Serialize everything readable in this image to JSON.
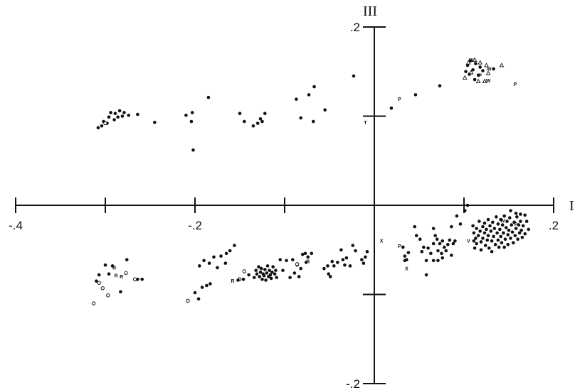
{
  "chart_data": {
    "type": "scatter",
    "title": "",
    "xlabel": "I",
    "ylabel": "III",
    "xlim": [
      -0.4,
      0.2
    ],
    "ylim": [
      -0.2,
      0.2
    ],
    "grid": false,
    "x_ticks": [
      -0.4,
      -0.3,
      -0.2,
      -0.1,
      0.1,
      0.2
    ],
    "x_tick_labels": [
      {
        "value": -0.4,
        "label": "-.4"
      },
      {
        "value": -0.2,
        "label": "-.2"
      },
      {
        "value": 0.2,
        "label": ".2"
      }
    ],
    "y_ticks": [
      -0.2,
      -0.1,
      0.1,
      0.2
    ],
    "y_tick_labels": [
      {
        "value": 0.2,
        "label": ".2"
      },
      {
        "value": -0.2,
        "label": "-.2"
      }
    ],
    "series": [
      {
        "marker": "filled-circle",
        "points": [
          [
            -0.308,
            0.087
          ],
          [
            -0.304,
            0.089
          ],
          [
            -0.302,
            0.094
          ],
          [
            -0.298,
            0.092
          ],
          [
            -0.296,
            0.099
          ],
          [
            -0.294,
            0.104
          ],
          [
            -0.29,
            0.096
          ],
          [
            -0.289,
            0.103
          ],
          [
            -0.286,
            0.099
          ],
          [
            -0.284,
            0.106
          ],
          [
            -0.281,
            0.1
          ],
          [
            -0.279,
            0.104
          ],
          [
            -0.274,
            0.101
          ],
          [
            -0.264,
            0.102
          ],
          [
            -0.245,
            0.093
          ],
          [
            -0.21,
            0.101
          ],
          [
            -0.204,
            0.094
          ],
          [
            -0.203,
            0.104
          ],
          [
            -0.202,
            0.062
          ],
          [
            -0.185,
            0.121
          ],
          [
            -0.15,
            0.103
          ],
          [
            -0.145,
            0.094
          ],
          [
            -0.135,
            0.089
          ],
          [
            -0.13,
            0.092
          ],
          [
            -0.127,
            0.097
          ],
          [
            -0.125,
            0.094
          ],
          [
            -0.122,
            0.103
          ],
          [
            -0.087,
            0.119
          ],
          [
            -0.082,
            0.098
          ],
          [
            -0.073,
            0.124
          ],
          [
            -0.068,
            0.094
          ],
          [
            -0.067,
            0.133
          ],
          [
            -0.055,
            0.107
          ],
          [
            -0.023,
            0.145
          ],
          [
            0.019,
            0.109
          ],
          [
            0.046,
            0.124
          ],
          [
            0.073,
            0.134
          ],
          [
            0.102,
            0.15
          ],
          [
            0.104,
            0.157
          ],
          [
            0.106,
            0.147
          ],
          [
            0.107,
            0.162
          ],
          [
            0.11,
            0.152
          ],
          [
            0.112,
            0.141
          ],
          [
            0.113,
            0.159
          ],
          [
            0.116,
            0.146
          ],
          [
            0.118,
            0.155
          ],
          [
            0.121,
            0.151
          ],
          [
            0.133,
            0.153
          ],
          [
            -0.31,
            -0.085
          ],
          [
            -0.307,
            -0.078
          ],
          [
            -0.3,
            -0.067
          ],
          [
            -0.296,
            -0.077
          ],
          [
            -0.292,
            -0.068
          ],
          [
            -0.283,
            -0.097
          ],
          [
            -0.276,
            -0.061
          ],
          [
            -0.264,
            -0.083
          ],
          [
            -0.259,
            -0.083
          ],
          [
            -0.2,
            -0.098
          ],
          [
            -0.196,
            -0.105
          ],
          [
            -0.192,
            -0.092
          ],
          [
            -0.187,
            -0.09
          ],
          [
            -0.183,
            -0.088
          ],
          [
            -0.195,
            -0.068
          ],
          [
            -0.19,
            -0.062
          ],
          [
            -0.184,
            -0.065
          ],
          [
            -0.179,
            -0.058
          ],
          [
            -0.175,
            -0.07
          ],
          [
            -0.171,
            -0.057
          ],
          [
            -0.165,
            -0.054
          ],
          [
            -0.166,
            -0.065
          ],
          [
            -0.161,
            -0.051
          ],
          [
            -0.156,
            -0.045
          ],
          [
            -0.152,
            -0.084
          ],
          [
            -0.146,
            -0.083
          ],
          [
            -0.14,
            -0.078
          ],
          [
            -0.134,
            -0.081
          ],
          [
            -0.132,
            -0.073
          ],
          [
            -0.131,
            -0.077
          ],
          [
            -0.129,
            -0.069
          ],
          [
            -0.128,
            -0.08
          ],
          [
            -0.127,
            -0.075
          ],
          [
            -0.126,
            -0.071
          ],
          [
            -0.125,
            -0.083
          ],
          [
            -0.124,
            -0.077
          ],
          [
            -0.123,
            -0.079
          ],
          [
            -0.122,
            -0.072
          ],
          [
            -0.121,
            -0.084
          ],
          [
            -0.12,
            -0.076
          ],
          [
            -0.119,
            -0.068
          ],
          [
            -0.118,
            -0.08
          ],
          [
            -0.117,
            -0.073
          ],
          [
            -0.116,
            -0.078
          ],
          [
            -0.115,
            -0.082
          ],
          [
            -0.114,
            -0.075
          ],
          [
            -0.113,
            -0.069
          ],
          [
            -0.111,
            -0.077
          ],
          [
            -0.11,
            -0.073
          ],
          [
            -0.109,
            -0.081
          ],
          [
            -0.105,
            -0.061
          ],
          [
            -0.102,
            -0.073
          ],
          [
            -0.098,
            -0.062
          ],
          [
            -0.094,
            -0.081
          ],
          [
            -0.091,
            -0.061
          ],
          [
            -0.089,
            -0.076
          ],
          [
            -0.086,
            -0.067
          ],
          [
            -0.084,
            -0.08
          ],
          [
            -0.082,
            -0.071
          ],
          [
            -0.08,
            -0.055
          ],
          [
            -0.077,
            -0.054
          ],
          [
            -0.076,
            -0.064
          ],
          [
            -0.074,
            -0.058
          ],
          [
            -0.07,
            -0.054
          ],
          [
            -0.056,
            -0.071
          ],
          [
            -0.052,
            -0.068
          ],
          [
            -0.051,
            -0.077
          ],
          [
            -0.049,
            -0.08
          ],
          [
            -0.047,
            -0.063
          ],
          [
            -0.045,
            -0.068
          ],
          [
            -0.041,
            -0.064
          ],
          [
            -0.037,
            -0.05
          ],
          [
            -0.035,
            -0.061
          ],
          [
            -0.033,
            -0.067
          ],
          [
            -0.031,
            -0.059
          ],
          [
            -0.027,
            -0.068
          ],
          [
            -0.024,
            -0.045
          ],
          [
            -0.021,
            -0.051
          ],
          [
            -0.014,
            -0.061
          ],
          [
            -0.012,
            -0.065
          ],
          [
            -0.01,
            -0.058
          ],
          [
            -0.008,
            -0.052
          ],
          [
            0.032,
            -0.047
          ],
          [
            0.034,
            -0.057
          ],
          [
            0.034,
            -0.062
          ],
          [
            0.036,
            -0.061
          ],
          [
            0.038,
            -0.053
          ],
          [
            0.045,
            -0.024
          ],
          [
            0.047,
            -0.034
          ],
          [
            0.051,
            -0.038
          ],
          [
            0.053,
            -0.052
          ],
          [
            0.055,
            -0.047
          ],
          [
            0.058,
            -0.062
          ],
          [
            0.058,
            -0.078
          ],
          [
            0.06,
            -0.048
          ],
          [
            0.063,
            -0.054
          ],
          [
            0.066,
            -0.043
          ],
          [
            0.066,
            -0.062
          ],
          [
            0.066,
            -0.026
          ],
          [
            0.068,
            -0.034
          ],
          [
            0.07,
            -0.038
          ],
          [
            0.071,
            -0.051
          ],
          [
            0.071,
            -0.062
          ],
          [
            0.073,
            -0.043
          ],
          [
            0.075,
            -0.054
          ],
          [
            0.076,
            -0.04
          ],
          [
            0.076,
            -0.059
          ],
          [
            0.078,
            -0.047
          ],
          [
            0.08,
            -0.051
          ],
          [
            0.082,
            -0.044
          ],
          [
            0.084,
            -0.039
          ],
          [
            0.086,
            -0.056
          ],
          [
            0.088,
            -0.043
          ],
          [
            0.09,
            -0.04
          ],
          [
            0.086,
            -0.024
          ],
          [
            0.092,
            -0.012
          ],
          [
            0.096,
            -0.021
          ],
          [
            0.101,
            -0.006
          ],
          [
            0.104,
            0.0
          ],
          [
            0.11,
            -0.023
          ],
          [
            0.111,
            -0.031
          ],
          [
            0.111,
            -0.04
          ],
          [
            0.112,
            -0.048
          ],
          [
            0.113,
            -0.037
          ],
          [
            0.114,
            -0.026
          ],
          [
            0.114,
            -0.043
          ],
          [
            0.116,
            -0.034
          ],
          [
            0.117,
            -0.018
          ],
          [
            0.118,
            -0.029
          ],
          [
            0.119,
            -0.041
          ],
          [
            0.119,
            -0.05
          ],
          [
            0.121,
            -0.024
          ],
          [
            0.121,
            -0.037
          ],
          [
            0.123,
            -0.02
          ],
          [
            0.123,
            -0.031
          ],
          [
            0.124,
            -0.045
          ],
          [
            0.125,
            -0.027
          ],
          [
            0.126,
            -0.039
          ],
          [
            0.127,
            -0.016
          ],
          [
            0.127,
            -0.034
          ],
          [
            0.128,
            -0.048
          ],
          [
            0.129,
            -0.023
          ],
          [
            0.13,
            -0.029
          ],
          [
            0.131,
            -0.04
          ],
          [
            0.131,
            -0.052
          ],
          [
            0.132,
            -0.019
          ],
          [
            0.133,
            -0.035
          ],
          [
            0.134,
            -0.026
          ],
          [
            0.135,
            -0.044
          ],
          [
            0.136,
            -0.013
          ],
          [
            0.137,
            -0.031
          ],
          [
            0.138,
            -0.021
          ],
          [
            0.138,
            -0.039
          ],
          [
            0.139,
            -0.047
          ],
          [
            0.14,
            -0.027
          ],
          [
            0.141,
            -0.016
          ],
          [
            0.141,
            -0.035
          ],
          [
            0.142,
            -0.042
          ],
          [
            0.143,
            -0.022
          ],
          [
            0.144,
            -0.031
          ],
          [
            0.145,
            -0.012
          ],
          [
            0.145,
            -0.047
          ],
          [
            0.146,
            -0.038
          ],
          [
            0.147,
            -0.025
          ],
          [
            0.148,
            -0.018
          ],
          [
            0.149,
            -0.033
          ],
          [
            0.149,
            -0.044
          ],
          [
            0.15,
            -0.028
          ],
          [
            0.151,
            -0.014
          ],
          [
            0.152,
            -0.037
          ],
          [
            0.153,
            -0.022
          ],
          [
            0.154,
            -0.03
          ],
          [
            0.155,
            -0.042
          ],
          [
            0.156,
            -0.019
          ],
          [
            0.157,
            -0.034
          ],
          [
            0.158,
            -0.026
          ],
          [
            0.159,
            -0.013
          ],
          [
            0.16,
            -0.038
          ],
          [
            0.161,
            -0.022
          ],
          [
            0.162,
            -0.031
          ],
          [
            0.163,
            -0.018
          ],
          [
            0.164,
            -0.028
          ],
          [
            0.165,
            -0.036
          ],
          [
            0.166,
            -0.023
          ],
          [
            0.168,
            -0.032
          ],
          [
            0.17,
            -0.018
          ],
          [
            0.172,
            -0.027
          ],
          [
            0.158,
            -0.009
          ],
          [
            0.152,
            -0.006
          ],
          [
            0.163,
            -0.01
          ],
          [
            0.168,
            -0.011
          ]
        ]
      },
      {
        "marker": "open-circle",
        "points": [
          [
            -0.3,
            0.092
          ],
          [
            -0.277,
            -0.076
          ],
          [
            -0.307,
            -0.087
          ],
          [
            -0.303,
            -0.093
          ],
          [
            -0.297,
            -0.101
          ],
          [
            -0.313,
            -0.11
          ],
          [
            -0.208,
            -0.107
          ],
          [
            -0.145,
            -0.074
          ],
          [
            -0.267,
            -0.083
          ],
          [
            -0.086,
            -0.066
          ]
        ]
      },
      {
        "marker": "triangle",
        "points": [
          [
            0.105,
            0.16
          ],
          [
            0.112,
            0.163
          ],
          [
            0.118,
            0.16
          ],
          [
            0.125,
            0.157
          ],
          [
            0.127,
            0.148
          ],
          [
            0.108,
            0.149
          ],
          [
            0.101,
            0.143
          ],
          [
            0.116,
            0.139
          ],
          [
            0.123,
            0.139
          ],
          [
            0.142,
            0.157
          ]
        ]
      },
      {
        "marker": "letter",
        "points": [
          {
            "x": 0.108,
            "y": 0.163,
            "label": "W"
          },
          {
            "x": 0.127,
            "y": 0.14,
            "label": "W"
          },
          {
            "x": 0.118,
            "y": 0.146,
            "label": "P"
          },
          {
            "x": 0.128,
            "y": 0.153,
            "label": "W"
          },
          {
            "x": 0.157,
            "y": 0.136,
            "label": "P"
          },
          {
            "x": 0.028,
            "y": 0.119,
            "label": "P"
          },
          {
            "x": -0.01,
            "y": 0.093,
            "label": "T"
          },
          {
            "x": 0.008,
            "y": -0.04,
            "label": "X"
          },
          {
            "x": 0.028,
            "y": -0.046,
            "label": "P"
          },
          {
            "x": 0.036,
            "y": -0.071,
            "label": "X"
          },
          {
            "x": 0.143,
            "y": -0.017,
            "label": "W"
          },
          {
            "x": 0.158,
            "y": -0.021,
            "label": "P"
          },
          {
            "x": 0.105,
            "y": -0.04,
            "label": "V"
          },
          {
            "x": -0.288,
            "y": -0.079,
            "label": "R"
          },
          {
            "x": -0.29,
            "y": -0.07,
            "label": "R"
          },
          {
            "x": -0.282,
            "y": -0.08,
            "label": "R"
          },
          {
            "x": -0.158,
            "y": -0.085,
            "label": "R"
          },
          {
            "x": -0.15,
            "y": -0.083,
            "label": "D"
          },
          {
            "x": -0.074,
            "y": -0.063,
            "label": "R"
          }
        ]
      }
    ]
  }
}
